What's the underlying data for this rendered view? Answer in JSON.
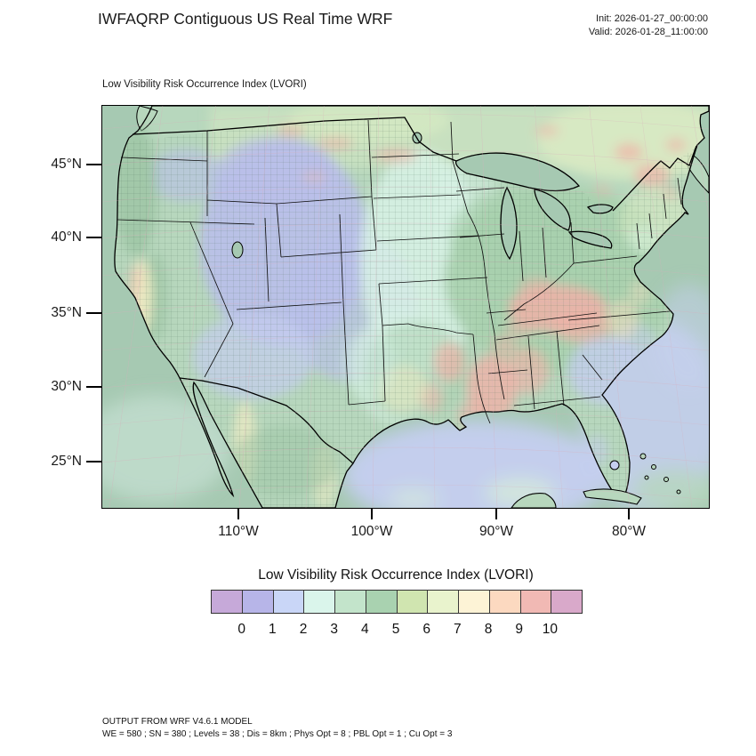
{
  "header": {
    "title": "IWFAQRP Contiguous US Real Time WRF",
    "init_label": "Init: 2026-01-27_00:00:00",
    "valid_label": "Valid: 2026-01-28_11:00:00"
  },
  "map": {
    "subtitle": "Low Visibility Risk Occurrence Index   (LVORI)",
    "lat_ticks": [
      "45°N",
      "40°N",
      "35°N",
      "30°N",
      "25°N"
    ],
    "lon_ticks": [
      "110°W",
      "100°W",
      "90°W",
      "80°W"
    ]
  },
  "legend": {
    "title": "Low Visibility Risk Occurrence Index  (LVORI)",
    "tick_labels": [
      "0",
      "1",
      "2",
      "3",
      "4",
      "5",
      "6",
      "7",
      "8",
      "9",
      "10"
    ],
    "cell_colors": [
      "#c6a9d9",
      "#b7b5e8",
      "#c9d6f7",
      "#daf5eb",
      "#c3e4cb",
      "#a9d2b0",
      "#d0e5b0",
      "#e9f3cd",
      "#fdf3d6",
      "#fcd9c0",
      "#f1b9b4",
      "#d9a9ca"
    ]
  },
  "footer": {
    "line1": "OUTPUT FROM WRF V4.6.1 MODEL",
    "line2": "WE = 580 ; SN = 380 ; Levels = 38 ; Dis = 8km ; Phys Opt = 8 ; PBL Opt = 1 ; Cu Opt = 3"
  },
  "colors": {
    "oceanGreen": "#a6c9b2",
    "oceanBlue": "#c5cff0",
    "gulfPale": "#d7eed8",
    "paleCyan": "#cfe8dd",
    "landBase": "#b7d7bd",
    "mwBlue": "#b9bfea",
    "desertBlue": "#c4cdef",
    "mint": "#d8f2e6",
    "eastGreen": "#a8d0ae",
    "cstGreen": "#9cc4a4",
    "hotspotPink": "#efb2a8",
    "paleYellow": "#f4edc4",
    "canadaPale": "#dcecc4",
    "peach": "#f8ddc0",
    "graticulePink": "#d9aebc"
  }
}
